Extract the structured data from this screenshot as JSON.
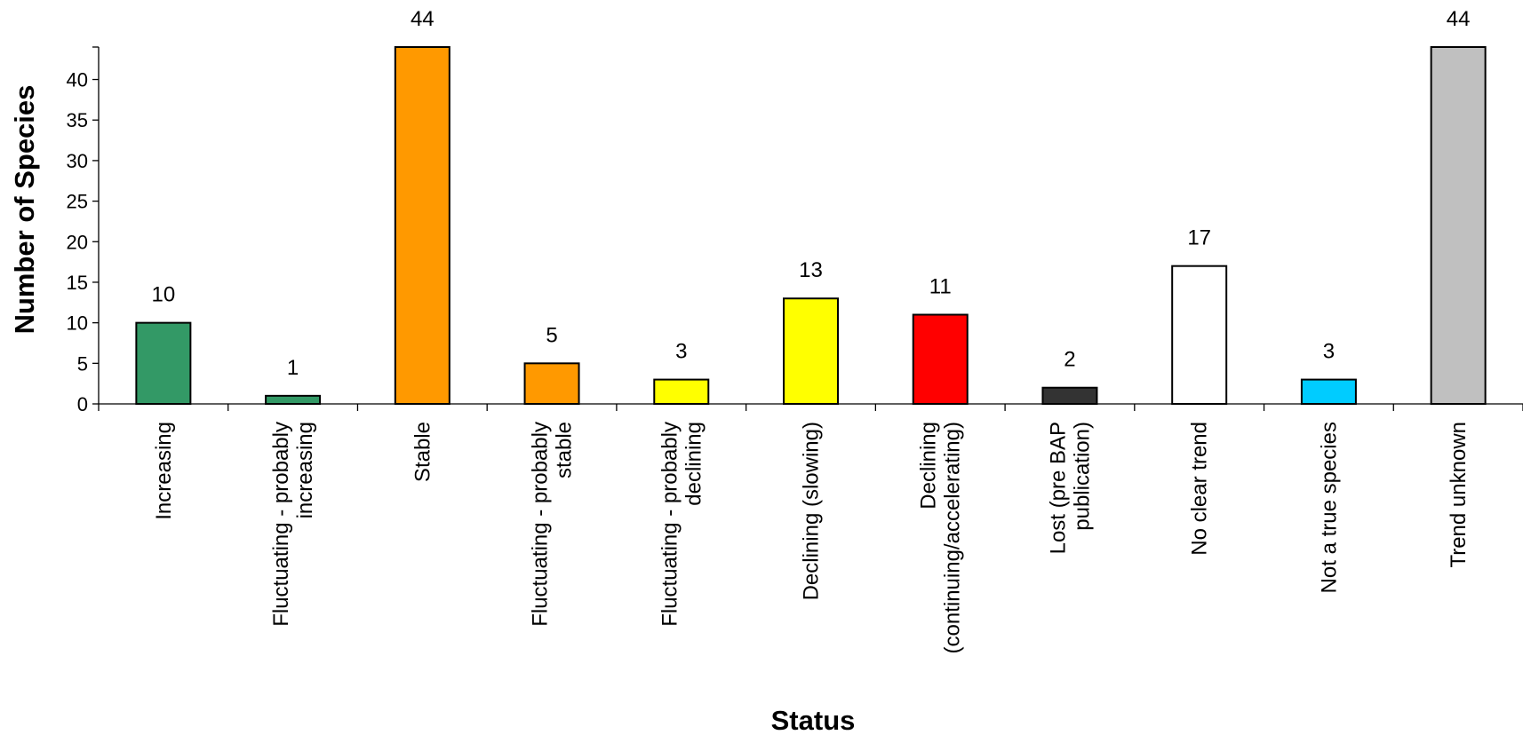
{
  "chart_data": {
    "type": "bar",
    "title": "",
    "xlabel": "Status",
    "ylabel": "Number of Species",
    "ylim": [
      0,
      44
    ],
    "yticks": [
      0,
      5,
      10,
      15,
      20,
      25,
      30,
      35,
      40
    ],
    "grid": false,
    "legend": "none",
    "categories": [
      [
        "Increasing"
      ],
      [
        "Fluctuating - probably",
        "increasing"
      ],
      [
        "Stable"
      ],
      [
        "Fluctuating - probably",
        "stable"
      ],
      [
        "Fluctuating - probably",
        "declining"
      ],
      [
        "Declining (slowing)"
      ],
      [
        "Declining",
        "(continuing/accelerating)"
      ],
      [
        "Lost (pre BAP",
        "publication)"
      ],
      [
        "No clear trend"
      ],
      [
        "Not a true species"
      ],
      [
        "Trend unknown"
      ]
    ],
    "values": [
      10,
      1,
      44,
      5,
      3,
      13,
      11,
      2,
      17,
      3,
      44
    ],
    "colors": [
      "#339966",
      "#339966",
      "#FF9900",
      "#FF9900",
      "#FFFF00",
      "#FFFF00",
      "#FF0000",
      "#333333",
      "#FFFFFF",
      "#00CCFF",
      "#C0C0C0"
    ]
  }
}
